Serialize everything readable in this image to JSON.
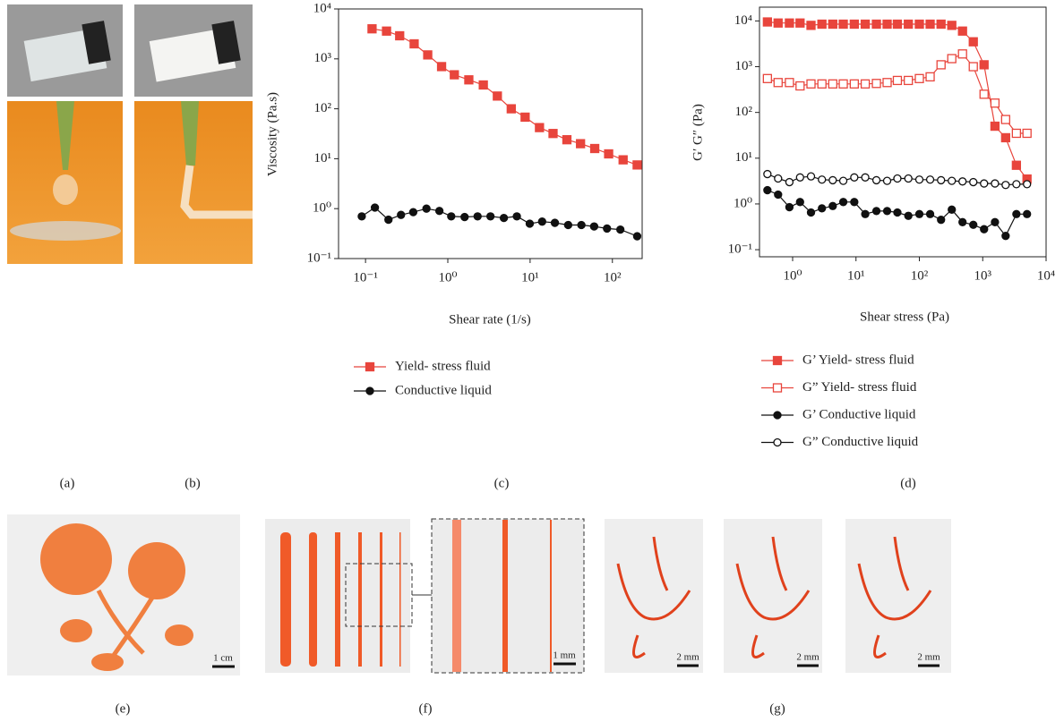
{
  "chart_data": [
    {
      "type": "line",
      "log_x": true,
      "log_y": true,
      "x_label": "Shear rate (1/s)",
      "y_label": "Viscosity (Pa.s)",
      "xlim": [
        0.047,
        230
      ],
      "ylim": [
        0.1,
        10000
      ],
      "xticks": [
        {
          "value": 0.1,
          "label": "10⁻¹"
        },
        {
          "value": 1,
          "label": "10⁰"
        },
        {
          "value": 10,
          "label": "10¹"
        },
        {
          "value": 100,
          "label": "10²"
        }
      ],
      "yticks": [
        {
          "value": 0.1,
          "label": "10⁻¹"
        },
        {
          "value": 1,
          "label": "10⁰"
        },
        {
          "value": 10,
          "label": "10¹"
        },
        {
          "value": 100,
          "label": "10²"
        },
        {
          "value": 1000,
          "label": "10³"
        },
        {
          "value": 10000,
          "label": "10⁴"
        }
      ],
      "series": [
        {
          "name": "Yield- stress fluid",
          "color": "#e8453c",
          "marker": "square",
          "x": [
            0.12,
            0.18,
            0.26,
            0.39,
            0.57,
            0.84,
            1.2,
            1.8,
            2.7,
            4,
            5.9,
            8.7,
            13,
            19,
            28,
            41,
            61,
            90,
            135,
            200
          ],
          "values": [
            4000,
            3600,
            2900,
            2000,
            1200,
            700,
            480,
            380,
            300,
            180,
            100,
            68,
            42,
            32,
            24,
            20,
            16,
            12.5,
            9.5,
            7.5
          ]
        },
        {
          "name": "Conductive liquid",
          "color": "#111111",
          "marker": "circle",
          "x": [
            0.09,
            0.13,
            0.19,
            0.27,
            0.38,
            0.55,
            0.79,
            1.1,
            1.6,
            2.3,
            3.3,
            4.8,
            6.9,
            9.9,
            14,
            20,
            29,
            42,
            60,
            86,
            125,
            200
          ],
          "values": [
            0.7,
            1.05,
            0.6,
            0.75,
            0.85,
            1.0,
            0.9,
            0.7,
            0.68,
            0.7,
            0.7,
            0.65,
            0.7,
            0.5,
            0.55,
            0.52,
            0.47,
            0.47,
            0.44,
            0.4,
            0.38,
            0.28
          ]
        }
      ]
    },
    {
      "type": "line",
      "log_x": true,
      "log_y": true,
      "x_label": "Shear stress (Pa)",
      "y_label": "G′ G″ (Pa)",
      "xlim": [
        0.3,
        10000
      ],
      "ylim": [
        0.07,
        20000
      ],
      "xticks": [
        {
          "value": 1,
          "label": "10⁰"
        },
        {
          "value": 10,
          "label": "10¹"
        },
        {
          "value": 100,
          "label": "10²"
        },
        {
          "value": 1000,
          "label": "10³"
        },
        {
          "value": 10000,
          "label": "10⁴"
        }
      ],
      "yticks": [
        {
          "value": 0.1,
          "label": "10⁻¹"
        },
        {
          "value": 1,
          "label": "10⁰"
        },
        {
          "value": 10,
          "label": "10¹"
        },
        {
          "value": 100,
          "label": "10²"
        },
        {
          "value": 1000,
          "label": "10³"
        },
        {
          "value": 10000,
          "label": "10⁴"
        }
      ],
      "x": [
        0.4,
        0.59,
        0.89,
        1.31,
        1.95,
        2.9,
        4.3,
        6.3,
        9.4,
        14,
        21,
        31,
        45,
        67,
        100,
        148,
        220,
        325,
        480,
        710,
        1050,
        1560,
        2300,
        3400,
        5000
      ],
      "series": [
        {
          "name": "G’ Yield- stress fluid",
          "color": "#e8453c",
          "marker": "square",
          "values": [
            9500,
            9000,
            9000,
            9000,
            8000,
            8500,
            8500,
            8500,
            8500,
            8500,
            8500,
            8500,
            8500,
            8500,
            8500,
            8500,
            8500,
            8000,
            6000,
            3500,
            1100,
            50,
            28,
            7,
            3.5
          ]
        },
        {
          "name": "G” Yield- stress fluid",
          "color": "#e8453c",
          "marker": "square-open",
          "values": [
            550,
            450,
            450,
            380,
            420,
            420,
            420,
            420,
            420,
            420,
            430,
            450,
            500,
            500,
            550,
            600,
            1100,
            1500,
            1900,
            1000,
            250,
            160,
            70,
            35,
            35
          ]
        },
        {
          "name": "G’ Conductive liquid",
          "color": "#111111",
          "marker": "circle",
          "values": [
            2,
            1.6,
            0.85,
            1.1,
            0.65,
            0.8,
            0.9,
            1.1,
            1.1,
            0.6,
            0.7,
            0.7,
            0.65,
            0.55,
            0.6,
            0.6,
            0.45,
            0.75,
            0.4,
            0.35,
            0.28,
            0.4,
            0.2,
            0.6,
            0.6
          ]
        },
        {
          "name": "G” Conductive liquid",
          "color": "#111111",
          "marker": "circle-open",
          "values": [
            4.5,
            3.6,
            3.0,
            3.8,
            4,
            3.4,
            3.3,
            3.2,
            3.8,
            3.8,
            3.3,
            3.2,
            3.6,
            3.6,
            3.4,
            3.4,
            3.3,
            3.2,
            3.1,
            3.0,
            2.8,
            2.8,
            2.6,
            2.7,
            2.7
          ]
        }
      ]
    }
  ],
  "panels": {
    "labels": [
      "(a)",
      "(b)",
      "(c)",
      "(d)",
      "(e)",
      "(f)",
      "(g)"
    ],
    "scale_bars": [
      "1 cm",
      "1 mm",
      "2 mm",
      "2 mm",
      "2 mm"
    ]
  }
}
